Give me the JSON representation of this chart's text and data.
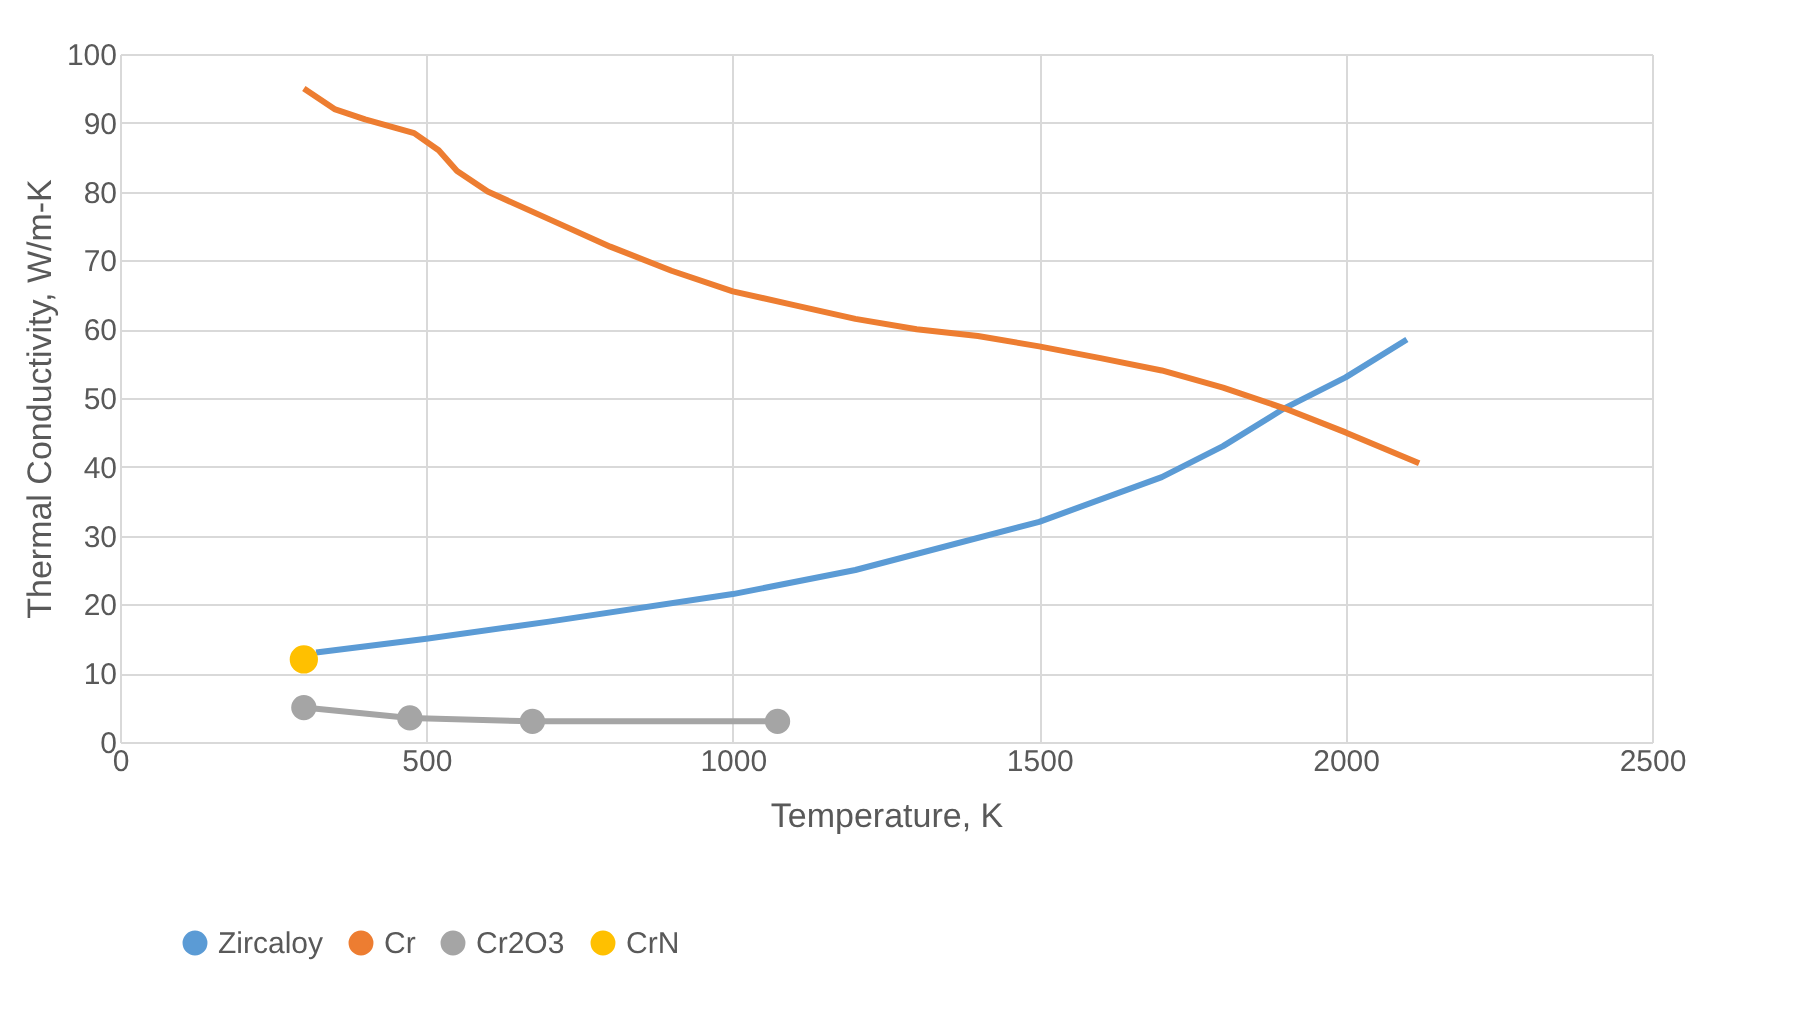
{
  "chart_data": {
    "type": "line",
    "xlabel": "Temperature, K",
    "ylabel": "Thermal Conductivity, W/m-K",
    "xlim": [
      0,
      2500
    ],
    "xticks": [
      0,
      500,
      1000,
      1500,
      2000,
      2500
    ],
    "ylim": [
      0,
      100
    ],
    "yticks": [
      0,
      10,
      20,
      30,
      40,
      50,
      60,
      70,
      80,
      90,
      100
    ],
    "grid": true,
    "legend": "bottom",
    "series": [
      {
        "name": "Zircaloy",
        "color": "#5b9bd5",
        "x": [
          320,
          500,
          700,
          1000,
          1200,
          1500,
          1700,
          1800,
          1900,
          2000,
          2100
        ],
        "values": [
          13,
          15,
          17.5,
          21.5,
          25,
          32,
          38.5,
          43,
          48.5,
          53,
          58.5
        ]
      },
      {
        "name": "Cr",
        "color": "#ed7d31",
        "x": [
          300,
          350,
          400,
          480,
          520,
          550,
          600,
          700,
          800,
          900,
          1000,
          1100,
          1200,
          1300,
          1400,
          1500,
          1600,
          1700,
          1800,
          1900,
          2000,
          2120
        ],
        "values": [
          95,
          92,
          90.5,
          88.5,
          86,
          83,
          80,
          76,
          72,
          68.5,
          65.5,
          63.5,
          61.5,
          60,
          59,
          57.5,
          55.8,
          54,
          51.5,
          48.5,
          45,
          40.5
        ]
      },
      {
        "name": "Cr2O3",
        "color": "#a5a5a5",
        "marker": "circle",
        "x": [
          300,
          473,
          673,
          1073
        ],
        "values": [
          5,
          3.5,
          3,
          3
        ]
      },
      {
        "name": "CrN",
        "type": "scatter",
        "color": "#ffc000",
        "marker": "circle",
        "x": [
          300
        ],
        "values": [
          12
        ]
      }
    ]
  }
}
